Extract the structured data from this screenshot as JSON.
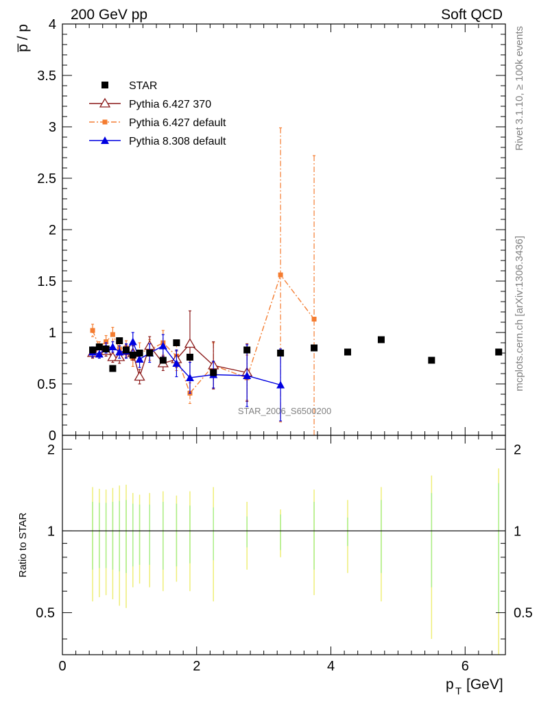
{
  "header": {
    "left": "200 GeV pp",
    "right": "Soft QCD"
  },
  "side_labels": {
    "rivet": "Rivet 3.1.10, ≥ 100k events",
    "site": "mcplots.cern.ch [arXiv:1306.3436]"
  },
  "watermark": "STAR_2006_S6500200",
  "chart_data": [
    {
      "type": "scatter",
      "panel": "main",
      "ylabel": "p̅ / p",
      "xlim": [
        0,
        6.6
      ],
      "ylim": [
        0,
        4
      ],
      "yticks": [
        "0",
        "0.5",
        "1",
        "1.5",
        "2",
        "2.5",
        "3",
        "3.5",
        "4"
      ],
      "legend_position": "top-left",
      "series": [
        {
          "name": "STAR",
          "marker": "square",
          "color": "#000000",
          "x": [
            0.45,
            0.55,
            0.65,
            0.75,
            0.85,
            0.95,
            1.05,
            1.15,
            1.3,
            1.5,
            1.7,
            1.9,
            2.25,
            2.75,
            3.25,
            3.75,
            4.25,
            4.75,
            5.5,
            6.5
          ],
          "y": [
            0.83,
            0.86,
            0.84,
            0.65,
            0.92,
            0.83,
            0.78,
            0.8,
            0.8,
            0.73,
            0.9,
            0.76,
            0.61,
            0.83,
            0.8,
            0.85,
            0.81,
            0.93,
            0.73,
            0.81
          ]
        },
        {
          "name": "Pythia 6.427 370",
          "marker": "open-triangle",
          "color": "#8b1a1a",
          "line": "solid",
          "x": [
            0.45,
            0.55,
            0.65,
            0.75,
            0.85,
            0.95,
            1.05,
            1.15,
            1.3,
            1.5,
            1.7,
            1.9,
            2.25,
            2.75
          ],
          "y": [
            0.8,
            0.82,
            0.82,
            0.76,
            0.76,
            0.82,
            0.8,
            0.57,
            0.87,
            0.7,
            0.74,
            0.89,
            0.68,
            0.61
          ],
          "err": [
            0.05,
            0.04,
            0.05,
            0.05,
            0.06,
            0.06,
            0.07,
            0.07,
            0.09,
            0.07,
            0.08,
            0.32,
            0.23,
            0.28
          ]
        },
        {
          "name": "Pythia 6.427 default",
          "marker": "small-square",
          "color": "#f47c30",
          "line": "dashdot",
          "x": [
            0.45,
            0.55,
            0.65,
            0.75,
            0.85,
            0.95,
            1.05,
            1.15,
            1.3,
            1.5,
            1.7,
            1.9,
            2.25,
            2.75,
            3.25,
            3.75
          ],
          "y": [
            1.02,
            0.86,
            0.91,
            0.98,
            0.84,
            0.85,
            0.75,
            0.81,
            0.83,
            0.9,
            0.77,
            0.41,
            0.68,
            0.56,
            1.56,
            1.13
          ],
          "err": [
            0.06,
            0.05,
            0.06,
            0.07,
            0.07,
            0.07,
            0.08,
            0.09,
            0.1,
            0.12,
            0.14,
            0.1,
            0.22,
            0.22,
            1.43,
            1.59
          ]
        },
        {
          "name": "Pythia 8.308 default",
          "marker": "triangle",
          "color": "#0000e0",
          "line": "solid",
          "x": [
            0.45,
            0.55,
            0.65,
            0.75,
            0.85,
            0.95,
            1.05,
            1.15,
            1.3,
            1.5,
            1.7,
            1.9,
            2.25,
            2.75,
            3.25
          ],
          "y": [
            0.81,
            0.79,
            0.85,
            0.86,
            0.81,
            0.82,
            0.91,
            0.74,
            0.8,
            0.87,
            0.7,
            0.56,
            0.59,
            0.58,
            0.49
          ],
          "err": [
            0.05,
            0.04,
            0.05,
            0.05,
            0.06,
            0.07,
            0.09,
            0.08,
            0.09,
            0.11,
            0.13,
            0.15,
            0.13,
            0.3,
            0.35
          ]
        }
      ]
    },
    {
      "type": "scatter",
      "panel": "ratio",
      "ylabel": "Ratio to STAR",
      "xlabel": "p_T [GeV]",
      "xlabel_main": "p",
      "xlabel_sub": "T",
      "xlabel_unit": "[GeV]",
      "xlim": [
        0,
        6.6
      ],
      "ylim": [
        0.35,
        2.25
      ],
      "xticks": [
        "0",
        "2",
        "4",
        "6"
      ],
      "yticks": [
        "0.5",
        "1",
        "2"
      ],
      "reference_line": 1,
      "bands": {
        "x": [
          0.45,
          0.55,
          0.65,
          0.75,
          0.85,
          0.95,
          1.05,
          1.15,
          1.3,
          1.5,
          1.7,
          1.9,
          2.25,
          2.75,
          3.25,
          3.75,
          4.25,
          4.75,
          5.5,
          6.5
        ],
        "stat": [
          0.28,
          0.27,
          0.27,
          0.28,
          0.29,
          0.3,
          0.26,
          0.25,
          0.25,
          0.28,
          0.26,
          0.24,
          0.22,
          0.13,
          0.15,
          0.28,
          0.12,
          0.3,
          0.38,
          0.5
        ],
        "total": [
          0.45,
          0.43,
          0.42,
          0.44,
          0.47,
          0.48,
          0.38,
          0.36,
          0.38,
          0.4,
          0.35,
          0.4,
          0.45,
          0.28,
          0.2,
          0.42,
          0.3,
          0.45,
          0.6,
          0.7
        ],
        "stat_color": "#aaee88",
        "total_color": "#eeee77"
      }
    }
  ]
}
